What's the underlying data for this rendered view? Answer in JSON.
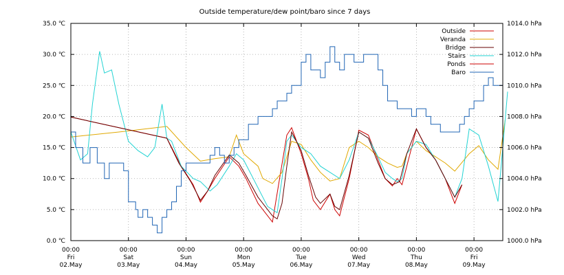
{
  "chart_data": {
    "type": "line",
    "title": "Outside temperature/dew point/baro since 7 days",
    "y_left": {
      "unit": "°C",
      "range": [
        0,
        35
      ],
      "ticks": [
        "0.0 ℃",
        "5.0 ℃",
        "10.0 ℃",
        "15.0 ℃",
        "20.0 ℃",
        "25.0 ℃",
        "30.0 ℃",
        "35.0 ℃"
      ]
    },
    "y_right": {
      "unit": "hPa",
      "range": [
        1000,
        1014
      ],
      "ticks": [
        "1000.0 hPa",
        "1002.0 hPa",
        "1004.0 hPa",
        "1006.0 hPa",
        "1008.0 hPa",
        "1010.0 hPa",
        "1012.0 hPa",
        "1014.0 hPa"
      ]
    },
    "x_axis": {
      "range_hours": [
        0,
        180
      ],
      "ticks": [
        {
          "time": "00:00",
          "day": "Fri",
          "date": "02.May"
        },
        {
          "time": "00:00",
          "day": "Sat",
          "date": "03.May"
        },
        {
          "time": "00:00",
          "day": "Sun",
          "date": "04.May"
        },
        {
          "time": "00:00",
          "day": "Mon",
          "date": "05.May"
        },
        {
          "time": "00:00",
          "day": "Tue",
          "date": "06.May"
        },
        {
          "time": "00:00",
          "day": "Wed",
          "date": "07.May"
        },
        {
          "time": "00:00",
          "day": "Thu",
          "date": "08.May"
        },
        {
          "time": "00:00",
          "day": "Fri",
          "date": "09.May"
        }
      ]
    },
    "grid": true,
    "legend_position": "top-right",
    "series": [
      {
        "name": "Outside",
        "color": "#cc0000",
        "axis": "left",
        "x": [
          0,
          40,
          46,
          51,
          54,
          57,
          60,
          66,
          70,
          73,
          78,
          84,
          87,
          90,
          92,
          96,
          99,
          101,
          104,
          108,
          110,
          112,
          116,
          120,
          124,
          128,
          131,
          134,
          136,
          138,
          144,
          148,
          152,
          156,
          160,
          163
        ],
        "y": [
          19.9,
          16.5,
          12,
          9,
          6.2,
          8,
          10,
          13.5,
          12,
          10,
          6,
          3,
          10,
          17,
          18.2,
          14,
          10,
          6.5,
          5,
          7.5,
          5,
          4,
          10,
          17.8,
          17,
          13,
          10,
          8.8,
          10,
          9,
          18,
          15,
          13,
          10,
          6,
          9
        ]
      },
      {
        "name": "Veranda",
        "color": "#e0a800",
        "axis": "left",
        "x": [
          0,
          20,
          40,
          48,
          54,
          60,
          66,
          69,
          72,
          78,
          80,
          84,
          88,
          92,
          96,
          100,
          104,
          108,
          112,
          116,
          120,
          124,
          128,
          132,
          136,
          138,
          140,
          144,
          148,
          152,
          156,
          160,
          166,
          170,
          174,
          178,
          181
        ],
        "y": [
          16.7,
          17.5,
          18.4,
          15,
          12.8,
          13.2,
          13.5,
          17,
          14,
          12,
          10,
          9.2,
          11,
          16,
          15.5,
          13,
          11,
          9.6,
          10,
          15,
          16,
          15,
          13.5,
          12.5,
          11.8,
          12,
          14,
          16,
          14.5,
          13.5,
          12.5,
          11.2,
          14,
          15.3,
          13,
          11.5,
          19.5
        ]
      },
      {
        "name": "Stairs",
        "color": "#22d3d3",
        "axis": "left",
        "x": [
          0,
          4,
          7,
          9,
          12,
          14,
          17,
          20,
          24,
          28,
          32,
          35,
          38,
          40,
          42,
          46,
          51,
          54,
          58,
          61,
          66,
          69,
          72,
          76,
          80,
          82,
          84,
          86,
          88,
          90,
          92,
          96,
          100,
          104,
          108,
          112,
          116,
          120,
          124,
          128,
          131,
          134,
          136,
          138,
          140,
          144,
          148,
          152,
          156,
          160,
          163,
          166,
          170,
          174,
          178,
          180,
          182
        ],
        "y": [
          17.5,
          13,
          14,
          22,
          30.5,
          27,
          27.5,
          22,
          16,
          14.5,
          13.5,
          15,
          22,
          16.5,
          16,
          12,
          10,
          9.5,
          8,
          9,
          12,
          14,
          13,
          10,
          7,
          5.5,
          5,
          4.5,
          10,
          16,
          17,
          15,
          14,
          12,
          11,
          10,
          13,
          17.5,
          16.5,
          13.5,
          11,
          10,
          9.5,
          10,
          14,
          16,
          15.5,
          13,
          10,
          7,
          10,
          18,
          17,
          12,
          6.3,
          15,
          24
        ]
      },
      {
        "name": "Ponds",
        "color": "#cc0000",
        "axis": "left",
        "x": [],
        "y": []
      },
      {
        "name": "Bridge",
        "color": "#660000",
        "axis": "left",
        "x": [
          0,
          40,
          45,
          50,
          54,
          57,
          60,
          66,
          70,
          73,
          78,
          84,
          86,
          88,
          90,
          92,
          96,
          99,
          102,
          104,
          108,
          110,
          112,
          116,
          120,
          124,
          128,
          131,
          134,
          137,
          140,
          144,
          148,
          152,
          156,
          160,
          163
        ],
        "y": [
          19.9,
          16.5,
          12.5,
          9.5,
          6.5,
          8,
          10.5,
          13.8,
          12.5,
          10.5,
          7,
          4,
          3.5,
          6,
          12,
          17.5,
          14.5,
          10.5,
          7,
          6,
          7.5,
          5.5,
          5,
          10.5,
          17.5,
          16.5,
          12.5,
          10,
          9,
          9.5,
          14,
          18,
          15,
          13,
          10,
          7,
          9
        ]
      },
      {
        "name": "Baro",
        "color": "#1f64b4",
        "axis": "right",
        "x": [
          0,
          2,
          5,
          8,
          11,
          14,
          16,
          19,
          22,
          24,
          27,
          28,
          30,
          32,
          34,
          36,
          38,
          40,
          42,
          44,
          46,
          48,
          50,
          52,
          54,
          56,
          58,
          60,
          62,
          64,
          66,
          68,
          70,
          72,
          74,
          76,
          78,
          80,
          82,
          84,
          86,
          88,
          90,
          92,
          94,
          96,
          98,
          100,
          102,
          104,
          106,
          108,
          110,
          112,
          114,
          116,
          118,
          120,
          122,
          124,
          126,
          128,
          130,
          132,
          134,
          136,
          138,
          140,
          142,
          144,
          146,
          148,
          150,
          152,
          154,
          156,
          158,
          160,
          162,
          164,
          166,
          168,
          170,
          172,
          174,
          176,
          178,
          180
        ],
        "y": [
          1007,
          1006,
          1005,
          1006,
          1005,
          1004,
          1005,
          1005,
          1004.5,
          1002.5,
          1002,
          1001.5,
          1002,
          1001.5,
          1001,
          1000.5,
          1001.5,
          1002,
          1002.5,
          1003.5,
          1004.5,
          1005,
          1005,
          1005,
          1005,
          1005,
          1005.5,
          1006,
          1005.5,
          1005,
          1005.5,
          1006,
          1006.5,
          1006.5,
          1007.5,
          1007.5,
          1008,
          1008,
          1008,
          1008.5,
          1009,
          1009,
          1009.5,
          1010,
          1010,
          1011.5,
          1012,
          1011,
          1011,
          1010.5,
          1011.5,
          1012.5,
          1011.5,
          1011,
          1012,
          1012,
          1011.5,
          1011.5,
          1012,
          1012,
          1012,
          1011,
          1010,
          1009,
          1009,
          1008.5,
          1008.5,
          1008.5,
          1008,
          1008.5,
          1008.5,
          1008,
          1007.5,
          1007.5,
          1007,
          1007,
          1007,
          1007,
          1007.5,
          1008,
          1008.5,
          1009,
          1009,
          1010,
          1010.5,
          1010,
          1010,
          1010
        ]
      }
    ]
  }
}
